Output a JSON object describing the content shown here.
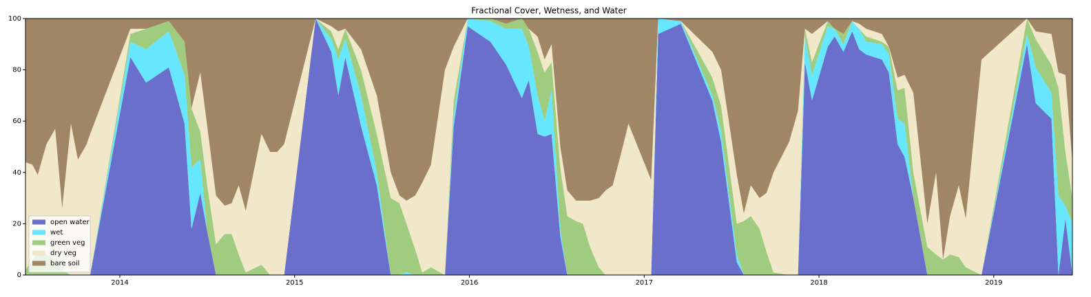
{
  "chart_data": {
    "type": "stacked_area",
    "title": "Fractional Cover, Wetness, and Water",
    "x": [
      2013.46,
      2013.5,
      2013.53,
      2013.58,
      2013.63,
      2013.67,
      2013.72,
      2013.76,
      2013.81,
      2013.83,
      2014.06,
      2014.15,
      2014.28,
      2014.37,
      2014.41,
      2014.46,
      2014.5,
      2014.55,
      2014.6,
      2014.64,
      2014.68,
      2014.72,
      2014.81,
      2014.86,
      2014.9,
      2014.94,
      2015.12,
      2015.21,
      2015.25,
      2015.29,
      2015.38,
      2015.47,
      2015.55,
      2015.6,
      2015.64,
      2015.69,
      2015.73,
      2015.78,
      2015.86,
      2015.91,
      2015.99,
      2016.12,
      2016.21,
      2016.3,
      2016.34,
      2016.39,
      2016.43,
      2016.47,
      2016.52,
      2016.56,
      2016.61,
      2016.65,
      2016.69,
      2016.74,
      2016.78,
      2016.82,
      2016.87,
      2016.91,
      2017.04,
      2017.08,
      2017.21,
      2017.39,
      2017.44,
      2017.53,
      2017.57,
      2017.61,
      2017.66,
      2017.7,
      2017.74,
      2017.83,
      2017.88,
      2017.92,
      2017.96,
      2018.05,
      2018.09,
      2018.14,
      2018.19,
      2018.23,
      2018.27,
      2018.36,
      2018.4,
      2018.45,
      2018.49,
      2018.54,
      2018.62,
      2018.67,
      2018.71,
      2018.75,
      2018.8,
      2018.84,
      2018.93,
      2019.19,
      2019.24,
      2019.33,
      2019.37,
      2019.41,
      2019.45
    ],
    "series": [
      {
        "name": "open water",
        "color": "#6a6fcb",
        "values": [
          0,
          0,
          0,
          0,
          0,
          0,
          0,
          0,
          0,
          0,
          85,
          75,
          81,
          59,
          18,
          32,
          17,
          0,
          0,
          0,
          0,
          0,
          0,
          0,
          0,
          0,
          100,
          87,
          70,
          85,
          58,
          35,
          0,
          0,
          0,
          0,
          0,
          0,
          0,
          58,
          97,
          91,
          82,
          69,
          76,
          55,
          54,
          55,
          15,
          0,
          0,
          0,
          0,
          0,
          0,
          0,
          0,
          0,
          0,
          94,
          98,
          68,
          52,
          5,
          0,
          0,
          0,
          0,
          0,
          0,
          0,
          83,
          68,
          89,
          93,
          87,
          95,
          88,
          86,
          84,
          79,
          51,
          46,
          30,
          0,
          0,
          0,
          0,
          0,
          0,
          0,
          90,
          67,
          61,
          0,
          22,
          0
        ]
      },
      {
        "name": "wet",
        "color": "#66e6ff",
        "values": [
          0,
          0,
          0,
          0,
          0,
          0,
          0,
          0,
          0,
          0,
          6,
          13,
          14,
          19,
          24,
          13,
          0,
          0,
          0,
          0,
          0,
          0,
          0,
          0,
          0,
          0,
          0,
          5,
          14,
          7,
          12,
          5,
          0,
          0,
          1,
          0,
          0,
          0,
          0,
          4,
          3,
          8,
          14,
          27,
          13,
          15,
          6,
          17,
          3,
          0,
          0,
          0,
          0,
          0,
          0,
          0,
          0,
          0,
          0,
          6,
          1,
          2,
          4,
          3,
          0,
          0,
          0,
          0,
          0,
          0,
          0,
          10,
          10,
          8,
          3,
          3,
          4,
          8,
          5,
          6,
          7,
          10,
          13,
          0,
          0,
          0,
          0,
          0,
          0,
          0,
          0,
          4,
          14,
          10,
          31,
          5,
          20
        ]
      },
      {
        "name": "green veg",
        "color": "#9fcc7e",
        "values": [
          2,
          6,
          9,
          8,
          6,
          2,
          0,
          0,
          0,
          0,
          3,
          8,
          4,
          13,
          23,
          11,
          18,
          12,
          16,
          16,
          8,
          1,
          4,
          0,
          0,
          0,
          0,
          3,
          4,
          4,
          10,
          15,
          30,
          28,
          19,
          10,
          1,
          3,
          0,
          6,
          0,
          1,
          2,
          4,
          7,
          17,
          19,
          11,
          24,
          23,
          21,
          20,
          11,
          3,
          0,
          0,
          0,
          0,
          0,
          0,
          0,
          7,
          10,
          12,
          21,
          23,
          18,
          9,
          1,
          0,
          0,
          3,
          5,
          2,
          0,
          4,
          0,
          0,
          2,
          1,
          3,
          11,
          14,
          10,
          11,
          8,
          6,
          8,
          7,
          3,
          0,
          6,
          11,
          11,
          42,
          21,
          10
        ]
      },
      {
        "name": "dry veg",
        "color": "#f1e7c9",
        "values": [
          42,
          37,
          30,
          43,
          51,
          24,
          59,
          45,
          51,
          55,
          2,
          0,
          0,
          0,
          0,
          23,
          23,
          19,
          11,
          12,
          27,
          24,
          51,
          48,
          48,
          51,
          0,
          2,
          7,
          0,
          8,
          15,
          10,
          3,
          9,
          21,
          35,
          40,
          80,
          21,
          0,
          0,
          0,
          0,
          0,
          6,
          5,
          7,
          8,
          10,
          8,
          9,
          18,
          27,
          33,
          35,
          48,
          59,
          37,
          0,
          0,
          10,
          14,
          19,
          3,
          12,
          12,
          23,
          39,
          52,
          64,
          0,
          11,
          0,
          0,
          0,
          0,
          2,
          3,
          3,
          0,
          5,
          5,
          31,
          9,
          32,
          0,
          15,
          28,
          19,
          84,
          0,
          3,
          12,
          6,
          30,
          14
        ]
      },
      {
        "name": "bare soil",
        "color": "#a08665",
        "values": [
          56,
          57,
          61,
          49,
          43,
          74,
          41,
          55,
          49,
          45,
          4,
          4,
          1,
          9,
          35,
          21,
          42,
          69,
          73,
          72,
          65,
          75,
          45,
          52,
          52,
          49,
          0,
          3,
          5,
          4,
          12,
          30,
          60,
          69,
          71,
          69,
          64,
          57,
          20,
          11,
          0,
          0,
          2,
          0,
          4,
          7,
          16,
          10,
          50,
          67,
          71,
          71,
          71,
          70,
          67,
          65,
          52,
          41,
          63,
          0,
          1,
          13,
          20,
          61,
          76,
          65,
          70,
          68,
          60,
          48,
          36,
          4,
          6,
          1,
          4,
          6,
          1,
          2,
          4,
          6,
          11,
          23,
          22,
          29,
          80,
          60,
          94,
          77,
          65,
          78,
          16,
          0,
          5,
          6,
          21,
          22,
          56
        ]
      }
    ],
    "xlim": [
      2013.46,
      2019.45
    ],
    "xticks": [
      2014,
      2015,
      2016,
      2017,
      2018,
      2019
    ],
    "ylim": [
      0,
      100
    ],
    "yticks": [
      0,
      20,
      40,
      60,
      80,
      100
    ],
    "legend": "lower left"
  }
}
